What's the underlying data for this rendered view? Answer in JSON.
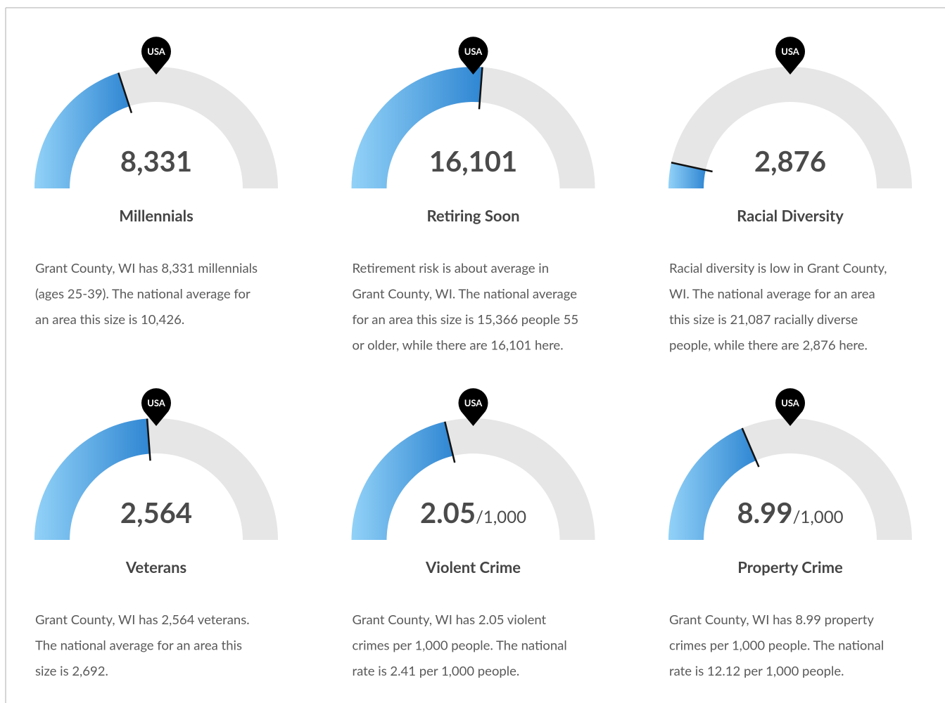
{
  "cards": [
    {
      "value_label": "8,331",
      "value": 8331,
      "national_average": 10426,
      "title": "Millennials",
      "description": [
        "Grant County, WI has 8,331 millennials",
        "(ages 25-39). The national average for",
        "an area this size is 10,426."
      ]
    },
    {
      "value_label": "16,101",
      "value": 16101,
      "national_average": 15366,
      "title": "Retiring Soon",
      "description": [
        "Retirement risk is about average in",
        "Grant County, WI. The national average",
        "for an area this size is 15,366 people 55",
        "or older, while there are 16,101 here."
      ]
    },
    {
      "value_label": "2,876",
      "value": 2876,
      "national_average": 21087,
      "title": "Racial Diversity",
      "description": [
        "Racial diversity is low in Grant County,",
        "WI. The national average for an area",
        "this size is 21,087 racially diverse",
        "people, while there are 2,876 here."
      ]
    },
    {
      "value_label": "2,564",
      "value": 2564,
      "national_average": 2692,
      "title": "Veterans",
      "description": [
        "Grant County, WI has 2,564 veterans.",
        "The national average for an area this",
        "size is 2,692."
      ]
    },
    {
      "value_label": "2.05",
      "unit": "/1,000",
      "value": 2.05,
      "national_average": 2.41,
      "title": "Violent Crime",
      "description": [
        "Grant County, WI has 2.05 violent",
        "crimes per 1,000 people. The national",
        "rate is 2.41 per 1,000 people."
      ]
    },
    {
      "value_label": "8.99",
      "unit": "/1,000",
      "value": 8.99,
      "national_average": 12.12,
      "title": "Property Crime",
      "description": [
        "Grant County, WI has 8.99 property",
        "crimes per 1,000 people. The national",
        "rate is 12.12 per 1,000 people."
      ]
    }
  ],
  "marker_label": "USA"
}
